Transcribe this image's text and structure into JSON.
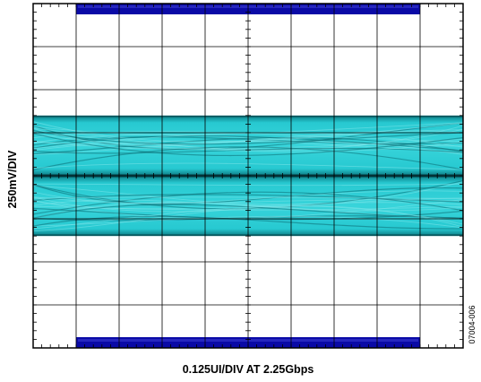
{
  "figure": {
    "y_axis_label": "250mV/DIV",
    "x_axis_label": "0.125UI/DIV AT 2.25Gbps",
    "figure_id": "07004-006"
  },
  "chart_data": {
    "type": "eye-diagram",
    "xlabel": "0.125UI/DIV AT 2.25Gbps",
    "ylabel": "250mV/DIV",
    "bit_rate": "2.25Gbps",
    "x_scale": "0.125UI/DIV",
    "y_scale": "250mV/DIV",
    "divisions": {
      "x": 10,
      "y": 8
    },
    "grid": true,
    "mask": {
      "upper_region_divisions": {
        "x": [
          1,
          9
        ],
        "y": [
          3.75,
          4
        ]
      },
      "lower_region_divisions": {
        "x": [
          1,
          9
        ],
        "y": [
          -4,
          -3.75
        ]
      }
    },
    "eye_bands_divisions": [
      {
        "name": "upper",
        "y": [
          0,
          1.4
        ]
      },
      {
        "name": "lower",
        "y": [
          -1.4,
          0
        ]
      }
    ],
    "colors": {
      "mask": "#0a0aa6",
      "trace": "#22c8d0",
      "trace_dark": "#0a6b73",
      "grid": "#000000"
    }
  }
}
